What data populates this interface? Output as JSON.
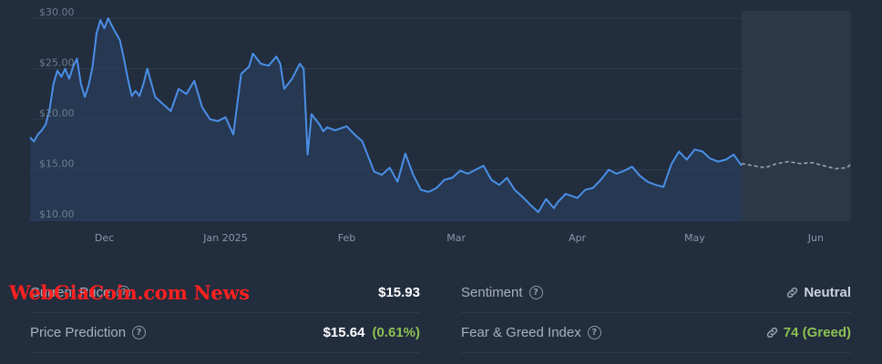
{
  "chart_data": {
    "type": "line",
    "currency_prefix": "$",
    "y_ticks": [
      10,
      15,
      20,
      25,
      30
    ],
    "y_tick_labels": [
      "$10.00",
      "$15.00",
      "$20.00",
      "$25.00",
      "$30.00"
    ],
    "ylim": [
      9,
      30.5
    ],
    "x_ticks": [
      "2024-12-01",
      "2025-01-01",
      "2025-02-01",
      "2025-03-01",
      "2025-04-01",
      "2025-05-01",
      "2025-06-01"
    ],
    "x_tick_labels": [
      "Dec",
      "Jan 2025",
      "Feb",
      "Mar",
      "Apr",
      "May",
      "Jun"
    ],
    "xlim": [
      "2024-11-12",
      "2025-06-10"
    ],
    "grid": true,
    "colors": {
      "history": "#4a8fe7",
      "forecast": "#9aa3b0",
      "forecast_bg": "#2c3748"
    },
    "series": [
      {
        "kind": "history",
        "x": [
          "2024-11-12",
          "2024-11-13",
          "2024-11-14",
          "2024-11-15",
          "2024-11-16",
          "2024-11-17",
          "2024-11-18",
          "2024-11-19",
          "2024-11-20",
          "2024-11-21",
          "2024-11-22",
          "2024-11-23",
          "2024-11-24",
          "2024-11-25",
          "2024-11-26",
          "2024-11-27",
          "2024-11-28",
          "2024-11-29",
          "2024-11-30",
          "2024-12-01",
          "2024-12-02",
          "2024-12-03",
          "2024-12-04",
          "2024-12-05",
          "2024-12-06",
          "2024-12-07",
          "2024-12-08",
          "2024-12-09",
          "2024-12-10",
          "2024-12-11",
          "2024-12-12",
          "2024-12-14",
          "2024-12-16",
          "2024-12-18",
          "2024-12-20",
          "2024-12-22",
          "2024-12-24",
          "2024-12-26",
          "2024-12-28",
          "2024-12-30",
          "2025-01-01",
          "2025-01-03",
          "2025-01-05",
          "2025-01-07",
          "2025-01-08",
          "2025-01-09",
          "2025-01-10",
          "2025-01-12",
          "2025-01-14",
          "2025-01-15",
          "2025-01-16",
          "2025-01-18",
          "2025-01-20",
          "2025-01-21",
          "2025-01-22",
          "2025-01-23",
          "2025-01-25",
          "2025-01-26",
          "2025-01-27",
          "2025-01-29",
          "2025-02-01",
          "2025-02-03",
          "2025-02-05",
          "2025-02-08",
          "2025-02-10",
          "2025-02-12",
          "2025-02-14",
          "2025-02-16",
          "2025-02-18",
          "2025-02-20",
          "2025-02-22",
          "2025-02-24",
          "2025-02-26",
          "2025-02-28",
          "2025-03-02",
          "2025-03-04",
          "2025-03-06",
          "2025-03-08",
          "2025-03-10",
          "2025-03-12",
          "2025-03-14",
          "2025-03-16",
          "2025-03-18",
          "2025-03-20",
          "2025-03-22",
          "2025-03-24",
          "2025-03-26",
          "2025-03-27",
          "2025-03-29",
          "2025-04-01",
          "2025-04-03",
          "2025-04-05",
          "2025-04-07",
          "2025-04-09",
          "2025-04-11",
          "2025-04-13",
          "2025-04-15",
          "2025-04-17",
          "2025-04-19",
          "2025-04-21",
          "2025-04-23",
          "2025-04-25",
          "2025-04-27",
          "2025-04-29",
          "2025-05-01",
          "2025-05-03",
          "2025-05-05",
          "2025-05-07",
          "2025-05-09",
          "2025-05-11",
          "2025-05-13"
        ],
        "values": [
          18.2,
          17.8,
          18.5,
          18.9,
          19.5,
          21.0,
          23.5,
          24.8,
          24.2,
          25.0,
          24.0,
          25.2,
          26.0,
          23.5,
          22.2,
          23.4,
          25.2,
          28.5,
          29.8,
          29.0,
          30.0,
          29.2,
          28.5,
          27.8,
          26.0,
          24.0,
          22.3,
          22.8,
          22.3,
          23.5,
          25.0,
          22.2,
          21.5,
          20.8,
          23.0,
          22.5,
          23.8,
          21.2,
          20.0,
          19.8,
          20.2,
          18.5,
          24.5,
          25.2,
          26.5,
          26.0,
          25.5,
          25.3,
          26.2,
          25.5,
          23.0,
          24.0,
          25.5,
          25.0,
          16.5,
          20.5,
          19.5,
          18.8,
          19.2,
          18.9,
          19.3,
          18.5,
          17.8,
          14.8,
          14.5,
          15.2,
          13.8,
          16.6,
          14.5,
          13.0,
          12.8,
          13.2,
          14.0,
          14.2,
          14.9,
          14.6,
          15.0,
          15.4,
          14.0,
          13.5,
          14.2,
          13.0,
          12.3,
          11.5,
          10.8,
          12.1,
          11.2,
          11.8,
          12.6,
          12.2,
          13.0,
          13.2,
          14.0,
          15.0,
          14.6,
          14.9,
          15.3,
          14.4,
          13.8,
          13.5,
          13.3,
          15.5,
          16.8,
          16.0,
          17.0,
          16.8,
          16.1,
          15.8,
          16.0,
          16.5,
          15.4
        ]
      },
      {
        "kind": "forecast",
        "x": [
          "2025-05-13",
          "2025-05-16",
          "2025-05-19",
          "2025-05-22",
          "2025-05-25",
          "2025-05-28",
          "2025-05-31",
          "2025-06-03",
          "2025-06-06",
          "2025-06-09",
          "2025-06-10"
        ],
        "values": [
          15.6,
          15.4,
          15.2,
          15.6,
          15.8,
          15.6,
          15.7,
          15.4,
          15.1,
          15.2,
          15.6
        ]
      }
    ]
  },
  "stats": {
    "current_price": {
      "label": "Current Price",
      "value": "$15.93"
    },
    "price_prediction": {
      "label": "Price Prediction",
      "value": "$15.64",
      "change": "(0.61%)"
    },
    "sentiment": {
      "label": "Sentiment",
      "value": "Neutral"
    },
    "fear_greed": {
      "label": "Fear & Greed Index",
      "value": "74 (Greed)"
    }
  },
  "watermark": {
    "text": "WebGiaCoin.com News",
    "color": "#ff2020"
  }
}
